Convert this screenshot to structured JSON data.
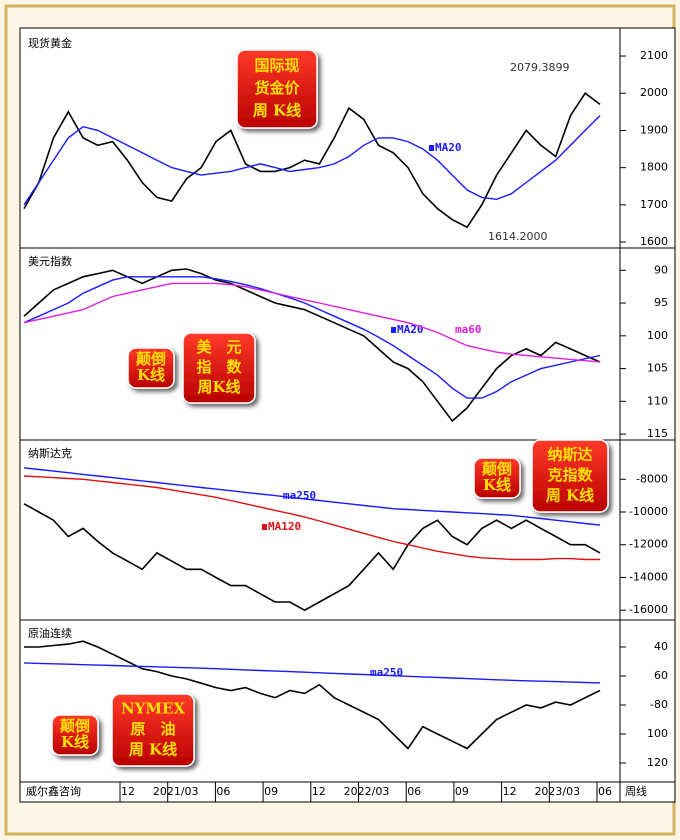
{
  "chart_data": [
    {
      "type": "line",
      "title": "现货黄金",
      "ylim": [
        1584,
        2170
      ],
      "yticks": [
        1600,
        1700,
        1800,
        1900,
        2000,
        2100
      ],
      "series": [
        {
          "color": "#000000",
          "values": [
            1690,
            1760,
            1880,
            1950,
            1880,
            1860,
            1870,
            1820,
            1760,
            1720,
            1710,
            1770,
            1800,
            1870,
            1900,
            1810,
            1790,
            1790,
            1800,
            1820,
            1810,
            1880,
            1960,
            1930,
            1860,
            1840,
            1800,
            1730,
            1690,
            1660,
            1640,
            1700,
            1780,
            1840,
            1900,
            1860,
            1830,
            1940,
            2000,
            1970
          ]
        },
        {
          "name": "MA20",
          "color": "#1a1aff",
          "values": [
            1700,
            1760,
            1820,
            1880,
            1910,
            1900,
            1880,
            1860,
            1840,
            1820,
            1800,
            1790,
            1780,
            1785,
            1790,
            1800,
            1810,
            1800,
            1790,
            1795,
            1800,
            1810,
            1830,
            1860,
            1880,
            1880,
            1870,
            1850,
            1820,
            1780,
            1740,
            1720,
            1715,
            1730,
            1760,
            1790,
            1820,
            1860,
            1900,
            1940
          ]
        }
      ],
      "annotations": [
        "2079.3899",
        "1614.2000"
      ],
      "boxes": [
        {
          "lines": [
            "国际现",
            "货金价",
            "周 K线"
          ]
        }
      ]
    },
    {
      "type": "line",
      "title": "美元指数",
      "ylim": [
        86.6,
        115.9
      ],
      "y_inverted": true,
      "yticks": [
        90,
        95,
        100,
        105,
        110,
        115
      ],
      "series": [
        {
          "color": "#000000",
          "values": [
            97,
            95,
            93,
            92,
            91,
            90.5,
            90,
            91,
            92,
            91,
            90,
            89.8,
            90.5,
            91.5,
            92,
            93,
            94,
            95,
            95.5,
            96,
            97,
            98,
            99,
            100,
            102,
            104,
            105,
            107,
            110,
            113,
            111,
            108,
            105,
            103,
            102,
            103,
            101,
            102,
            103,
            104
          ]
        },
        {
          "name": "MA20",
          "color": "#1a1aff",
          "values": [
            98,
            97,
            96,
            95,
            93.5,
            92.5,
            91.5,
            91,
            91,
            91,
            91,
            91,
            91,
            91.3,
            91.7,
            92.2,
            92.8,
            93.5,
            94.2,
            95,
            96,
            97,
            98,
            99,
            100.2,
            101.5,
            103,
            104.5,
            106,
            108,
            109.5,
            109.5,
            108.5,
            107,
            106,
            105,
            104.5,
            104,
            103.5,
            103
          ]
        },
        {
          "name": "ma60",
          "color": "#e020e0",
          "values": [
            98,
            97.5,
            97,
            96.5,
            96,
            95,
            94,
            93.5,
            93,
            92.5,
            92,
            92,
            92,
            92,
            92.2,
            92.5,
            93,
            93.5,
            94,
            94.5,
            95,
            95.5,
            96,
            96.5,
            97,
            97.5,
            98,
            98.7,
            99.5,
            100.5,
            101.5,
            102,
            102.5,
            102.8,
            103,
            103.2,
            103.4,
            103.6,
            103.8,
            104
          ]
        }
      ],
      "boxes": [
        {
          "lines": [
            "颠倒",
            "K线"
          ]
        },
        {
          "lines": [
            "美　元",
            "指　数",
            "周K线"
          ]
        }
      ]
    },
    {
      "type": "line",
      "title": "纳斯达克",
      "ylim": [
        -16600,
        -5600
      ],
      "yticks": [
        -8000,
        -10000,
        -12000,
        -14000,
        -16000
      ],
      "series": [
        {
          "color": "#000000",
          "values": [
            -9500,
            -10000,
            -10500,
            -11500,
            -11000,
            -11800,
            -12500,
            -13000,
            -13500,
            -12500,
            -13000,
            -13500,
            -13500,
            -14000,
            -14500,
            -14500,
            -15000,
            -15500,
            -15500,
            -16000,
            -15500,
            -15000,
            -14500,
            -13500,
            -12500,
            -13500,
            -12000,
            -11000,
            -10500,
            -11500,
            -12000,
            -11000,
            -10500,
            -11000,
            -10500,
            -11000,
            -11500,
            -12000,
            -12000,
            -12500
          ]
        },
        {
          "name": "ma250",
          "color": "#1a1aff",
          "values": [
            -7300,
            -7400,
            -7500,
            -7600,
            -7700,
            -7800,
            -7900,
            -8000,
            -8100,
            -8200,
            -8300,
            -8400,
            -8500,
            -8600,
            -8700,
            -8800,
            -8900,
            -9000,
            -9100,
            -9200,
            -9300,
            -9400,
            -9500,
            -9600,
            -9700,
            -9800,
            -9850,
            -9900,
            -9950,
            -10000,
            -10050,
            -10100,
            -10150,
            -10200,
            -10300,
            -10400,
            -10500,
            -10600,
            -10700,
            -10800
          ]
        },
        {
          "name": "MA120",
          "color": "#e01010",
          "values": [
            -7800,
            -7850,
            -7900,
            -7950,
            -8000,
            -8100,
            -8200,
            -8300,
            -8400,
            -8500,
            -8650,
            -8800,
            -8950,
            -9100,
            -9300,
            -9500,
            -9700,
            -9900,
            -10100,
            -10300,
            -10550,
            -10800,
            -11050,
            -11300,
            -11550,
            -11800,
            -12000,
            -12200,
            -12400,
            -12550,
            -12700,
            -12800,
            -12850,
            -12900,
            -12900,
            -12900,
            -12850,
            -12850,
            -12900,
            -12900
          ]
        }
      ],
      "boxes": [
        {
          "lines": [
            "颠倒",
            "K线"
          ]
        },
        {
          "lines": [
            "纳斯达",
            "克指数",
            "周 K线"
          ]
        }
      ]
    },
    {
      "type": "line",
      "title": "原油连续",
      "ylim": [
        21.4,
        133.1
      ],
      "y_inverted": true,
      "yticks": [
        40,
        60,
        {
          "value": 80,
          "label": "-80"
        },
        100,
        120
      ],
      "series": [
        {
          "color": "#000000",
          "values": [
            40,
            40,
            39,
            38,
            36,
            40,
            45,
            50,
            55,
            57,
            60,
            62,
            65,
            68,
            70,
            68,
            72,
            75,
            70,
            72,
            66,
            75,
            80,
            85,
            90,
            100,
            110,
            95,
            100,
            105,
            110,
            100,
            90,
            85,
            80,
            82,
            78,
            80,
            75,
            70
          ]
        },
        {
          "name": "ma250",
          "color": "#1a1aff",
          "values": [
            51,
            51.3,
            51.6,
            51.9,
            52.2,
            52.5,
            52.8,
            53.1,
            53.4,
            53.7,
            54,
            54.3,
            54.6,
            55,
            55.4,
            55.8,
            56.2,
            56.6,
            57,
            57.4,
            57.8,
            58.2,
            58.6,
            59,
            59.4,
            59.8,
            60.2,
            60.6,
            61,
            61.4,
            61.8,
            62.2,
            62.6,
            63,
            63.3,
            63.6,
            63.9,
            64.2,
            64.5,
            64.8
          ]
        }
      ],
      "boxes": [
        {
          "lines": [
            "颠倒",
            "K线"
          ]
        },
        {
          "lines": [
            "NYMEX",
            "原　油",
            "周 K线"
          ]
        }
      ]
    }
  ],
  "x_axis": {
    "source": "威尔鑫咨询",
    "labels": [
      "12",
      "2021/03",
      "06",
      "09",
      "12",
      "2022/03",
      "06",
      "09",
      "12",
      "2023/03",
      "06"
    ],
    "period": "周线"
  }
}
